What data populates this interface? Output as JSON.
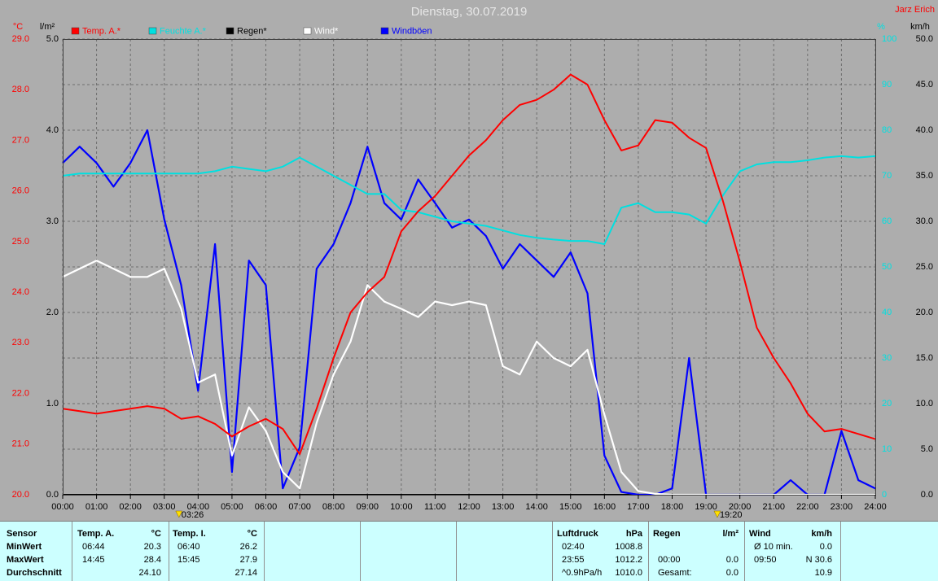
{
  "chart_data": {
    "type": "line",
    "title": "Dienstag, 30.07.2019",
    "author": "Jarz Erich",
    "x": [
      0,
      0.5,
      1,
      1.5,
      2,
      2.5,
      3,
      3.5,
      4,
      4.5,
      5,
      5.5,
      6,
      6.5,
      7,
      7.5,
      8,
      8.5,
      9,
      9.5,
      10,
      10.5,
      11,
      11.5,
      12,
      12.5,
      13,
      13.5,
      14,
      14.5,
      15,
      15.5,
      16,
      16.5,
      17,
      17.5,
      18,
      18.5,
      19,
      19.5,
      20,
      20.5,
      21,
      21.5,
      22,
      22.5,
      23,
      23.5,
      24
    ],
    "xlim": [
      0,
      24
    ],
    "xticks": [
      {
        "value": 0,
        "label": "00:00"
      },
      {
        "value": 1,
        "label": "01:00"
      },
      {
        "value": 2,
        "label": "02:00"
      },
      {
        "value": 3,
        "label": "03:00"
      },
      {
        "value": 4,
        "label": "04:00"
      },
      {
        "value": 5,
        "label": "05:00"
      },
      {
        "value": 6,
        "label": "06:00"
      },
      {
        "value": 7,
        "label": "07:00"
      },
      {
        "value": 8,
        "label": "08:00"
      },
      {
        "value": 9,
        "label": "09:00"
      },
      {
        "value": 10,
        "label": "10:00"
      },
      {
        "value": 11,
        "label": "11:00"
      },
      {
        "value": 12,
        "label": "12:00"
      },
      {
        "value": 13,
        "label": "13:00"
      },
      {
        "value": 14,
        "label": "14:00"
      },
      {
        "value": 15,
        "label": "15:00"
      },
      {
        "value": 16,
        "label": "16:00"
      },
      {
        "value": 17,
        "label": "17:00"
      },
      {
        "value": 18,
        "label": "18:00"
      },
      {
        "value": 19,
        "label": "19:00"
      },
      {
        "value": 20,
        "label": "20:00"
      },
      {
        "value": 21,
        "label": "21:00"
      },
      {
        "value": 22,
        "label": "22:00"
      },
      {
        "value": 23,
        "label": "23:00"
      },
      {
        "value": 24,
        "label": "24:00"
      }
    ],
    "ylim": [
      20,
      29
    ],
    "yticks": [
      {
        "value": 20,
        "label": "20.0"
      },
      {
        "value": 21,
        "label": "21.0"
      },
      {
        "value": 22,
        "label": "22.0"
      },
      {
        "value": 23,
        "label": "23.0"
      },
      {
        "value": 24,
        "label": "24.0"
      },
      {
        "value": 25,
        "label": "25.0"
      },
      {
        "value": 26,
        "label": "26.0"
      },
      {
        "value": 27,
        "label": "27.0"
      },
      {
        "value": 28,
        "label": "28.0"
      },
      {
        "value": 29,
        "label": "29.0"
      }
    ],
    "y2lim": [
      0,
      50
    ],
    "y2ticks": [
      {
        "value": 0,
        "label": "0.0"
      },
      {
        "value": 5,
        "label": "5.0"
      },
      {
        "value": 10,
        "label": "10.0"
      },
      {
        "value": 15,
        "label": "15.0"
      },
      {
        "value": 20,
        "label": "20.0"
      },
      {
        "value": 25,
        "label": "25.0"
      },
      {
        "value": 30,
        "label": "30.0"
      },
      {
        "value": 35,
        "label": "35.0"
      },
      {
        "value": 40,
        "label": "40.0"
      },
      {
        "value": 45,
        "label": "45.0"
      },
      {
        "value": 50,
        "label": "50.0"
      }
    ],
    "y3lim": [
      0,
      5
    ],
    "y3ticks": [
      {
        "value": 0,
        "label": "0.0"
      },
      {
        "value": 1,
        "label": "1.0"
      },
      {
        "value": 2,
        "label": "2.0"
      },
      {
        "value": 3,
        "label": "3.0"
      },
      {
        "value": 4,
        "label": "4.0"
      },
      {
        "value": 5,
        "label": "5.0"
      }
    ],
    "y4lim": [
      0,
      100
    ],
    "y4ticks": [
      0,
      10,
      20,
      30,
      40,
      50,
      60,
      70,
      80,
      90,
      100
    ],
    "axis_units": {
      "y": "°C",
      "y3": "l/m²",
      "y4": "%",
      "y2": "km/h"
    },
    "axis_colors": {
      "y": "#ff0000",
      "y3": "#000000",
      "y4": "#00e0e0",
      "y2": "#000000"
    },
    "grid": "y2",
    "annotations": [
      {
        "x": 3.4333,
        "label": "03:26"
      },
      {
        "x": 19.3333,
        "label": "19:20"
      }
    ],
    "series": [
      {
        "name": "Temp. A.*",
        "color": "#ff0000",
        "axis": "y",
        "values": [
          21.7,
          21.65,
          21.6,
          21.65,
          21.7,
          21.75,
          21.7,
          21.5,
          21.55,
          21.4,
          21.15,
          21.35,
          21.5,
          21.3,
          20.8,
          21.7,
          22.7,
          23.6,
          24.0,
          24.3,
          25.2,
          25.6,
          25.9,
          26.3,
          26.7,
          27.0,
          27.4,
          27.7,
          27.8,
          28.0,
          28.3,
          28.1,
          27.4,
          26.8,
          26.9,
          27.4,
          27.35,
          27.05,
          26.85,
          25.8,
          24.6,
          23.3,
          22.7,
          22.2,
          21.6,
          21.25,
          21.3,
          21.2,
          21.1
        ]
      },
      {
        "name": "Feuchte A.*",
        "color": "#00e0e0",
        "axis": "y4",
        "values": [
          70,
          70.5,
          70.5,
          70.5,
          70.5,
          70.5,
          70.5,
          70.5,
          70.5,
          71,
          72,
          71.5,
          71,
          72,
          74,
          72,
          70,
          68,
          66,
          66,
          62.5,
          62,
          61,
          60,
          59.5,
          59,
          58,
          57,
          56.4,
          56,
          55.7,
          55.7,
          55,
          63,
          64,
          62,
          62,
          61.5,
          59.5,
          65.7,
          71,
          72.5,
          73,
          73,
          73.4,
          74,
          74.3,
          74,
          74.3
        ]
      },
      {
        "name": "Regen*",
        "color": "#000000",
        "axis": "y3",
        "values": [
          0,
          0,
          0,
          0,
          0,
          0,
          0,
          0,
          0,
          0,
          0,
          0,
          0,
          0,
          0,
          0,
          0,
          0,
          0,
          0,
          0,
          0,
          0,
          0,
          0,
          0,
          0,
          0,
          0,
          0,
          0,
          0,
          0,
          0,
          0,
          0,
          0,
          0,
          0,
          0,
          0,
          0,
          0,
          0,
          0,
          0,
          0,
          0,
          0
        ]
      },
      {
        "name": "Wind*",
        "color": "#ffffff",
        "axis": "y2",
        "values": [
          23.9,
          24.8,
          25.7,
          24.8,
          23.9,
          23.9,
          24.8,
          20.4,
          12.3,
          13.2,
          4.3,
          9.6,
          7.0,
          2.5,
          0.7,
          7.9,
          13.2,
          16.8,
          23.0,
          21.2,
          20.4,
          19.5,
          21.2,
          20.8,
          21.2,
          20.8,
          14.1,
          13.2,
          16.8,
          15.0,
          14.1,
          15.9,
          8.8,
          2.5,
          0.4,
          0.1,
          0,
          0,
          0,
          0,
          0,
          0,
          0,
          0,
          0,
          0,
          0,
          0,
          0
        ]
      },
      {
        "name": "Windböen",
        "color": "#0000ff",
        "axis": "y2",
        "values": [
          36.4,
          38.2,
          36.4,
          33.8,
          36.4,
          40,
          30.2,
          23,
          11.4,
          27.5,
          2.5,
          25.7,
          23,
          0.7,
          5.2,
          24.8,
          27.5,
          32,
          38.2,
          32,
          30.2,
          34.6,
          32,
          29.3,
          30.2,
          28.4,
          24.8,
          27.5,
          25.7,
          23.9,
          26.6,
          22.1,
          4.3,
          0.3,
          0,
          0,
          0.7,
          15,
          0,
          0,
          0,
          0,
          0,
          1.6,
          0,
          0,
          7,
          1.6,
          0.7
        ]
      }
    ]
  },
  "table": {
    "sensor_label": "Sensor",
    "row_labels": [
      "MinWert",
      "MaxWert",
      "Durchschnitt"
    ],
    "groups": [
      {
        "name": "Temp. A.",
        "unit": "°C",
        "rows": [
          [
            "06:44",
            "20.3"
          ],
          [
            "14:45",
            "28.4"
          ],
          [
            null,
            "24.10"
          ]
        ]
      },
      {
        "name": "Temp. I.",
        "unit": "°C",
        "rows": [
          [
            "06:40",
            "26.2"
          ],
          [
            "15:45",
            "27.9"
          ],
          [
            null,
            "27.14"
          ]
        ]
      },
      {
        "name": "Luftdruck",
        "unit": "hPa",
        "rows": [
          [
            "02:40",
            "1008.8"
          ],
          [
            "23:55",
            "1012.2"
          ],
          [
            "^0.9hPa/h",
            "1010.0"
          ]
        ]
      },
      {
        "name": "Regen",
        "unit": "l/m²",
        "rows": [
          [
            null,
            null
          ],
          [
            "00:00",
            "0.0"
          ],
          [
            "Gesamt:",
            "0.0"
          ]
        ]
      },
      {
        "name": "Wind",
        "unit": "km/h",
        "rows": [
          [
            "Ø 10 min.",
            "0.0"
          ],
          [
            "09:50",
            "N 30.6"
          ],
          [
            null,
            "10.9"
          ]
        ]
      }
    ]
  }
}
